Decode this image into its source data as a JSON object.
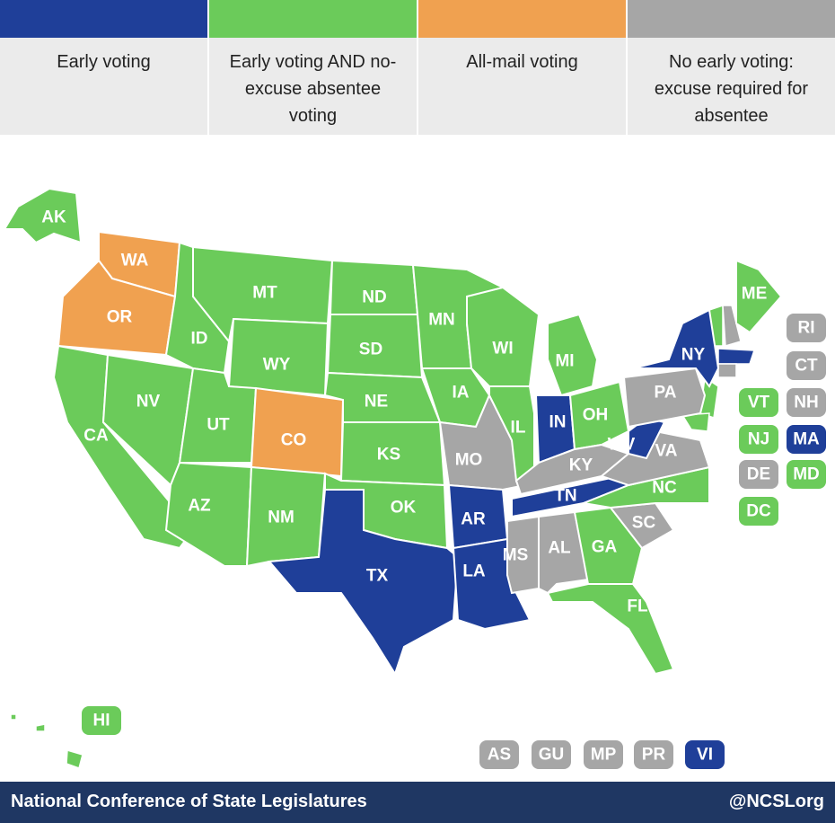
{
  "legend": [
    {
      "label": "Early voting",
      "color": "#1f3f99"
    },
    {
      "label": "Early voting AND no-excuse absentee voting",
      "color": "#6bcb5a"
    },
    {
      "label": "All-mail voting",
      "color": "#f0a150"
    },
    {
      "label": "No early voting: excuse required for absentee",
      "color": "#a6a6a6"
    }
  ],
  "states": [
    {
      "abbr": "AK",
      "category": 1
    },
    {
      "abbr": "WA",
      "category": 2
    },
    {
      "abbr": "OR",
      "category": 2
    },
    {
      "abbr": "CA",
      "category": 1
    },
    {
      "abbr": "NV",
      "category": 1
    },
    {
      "abbr": "ID",
      "category": 1
    },
    {
      "abbr": "MT",
      "category": 1
    },
    {
      "abbr": "WY",
      "category": 1
    },
    {
      "abbr": "UT",
      "category": 1
    },
    {
      "abbr": "CO",
      "category": 2
    },
    {
      "abbr": "AZ",
      "category": 1
    },
    {
      "abbr": "NM",
      "category": 1
    },
    {
      "abbr": "ND",
      "category": 1
    },
    {
      "abbr": "SD",
      "category": 1
    },
    {
      "abbr": "NE",
      "category": 1
    },
    {
      "abbr": "KS",
      "category": 1
    },
    {
      "abbr": "OK",
      "category": 1
    },
    {
      "abbr": "TX",
      "category": 0
    },
    {
      "abbr": "MN",
      "category": 1
    },
    {
      "abbr": "IA",
      "category": 1
    },
    {
      "abbr": "MO",
      "category": 3
    },
    {
      "abbr": "AR",
      "category": 0
    },
    {
      "abbr": "LA",
      "category": 0
    },
    {
      "abbr": "WI",
      "category": 1
    },
    {
      "abbr": "IL",
      "category": 1
    },
    {
      "abbr": "MI",
      "category": 1
    },
    {
      "abbr": "IN",
      "category": 0
    },
    {
      "abbr": "OH",
      "category": 1
    },
    {
      "abbr": "KY",
      "category": 3
    },
    {
      "abbr": "TN",
      "category": 0
    },
    {
      "abbr": "MS",
      "category": 3
    },
    {
      "abbr": "AL",
      "category": 3
    },
    {
      "abbr": "GA",
      "category": 1
    },
    {
      "abbr": "FL",
      "category": 1
    },
    {
      "abbr": "SC",
      "category": 3
    },
    {
      "abbr": "NC",
      "category": 1
    },
    {
      "abbr": "VA",
      "category": 3
    },
    {
      "abbr": "WV",
      "category": 0
    },
    {
      "abbr": "PA",
      "category": 3
    },
    {
      "abbr": "NY",
      "category": 0
    },
    {
      "abbr": "ME",
      "category": 1
    },
    {
      "abbr": "HI",
      "category": 1
    },
    {
      "abbr": "RI",
      "category": 3
    },
    {
      "abbr": "CT",
      "category": 3
    },
    {
      "abbr": "VT",
      "category": 1
    },
    {
      "abbr": "NH",
      "category": 3
    },
    {
      "abbr": "NJ",
      "category": 1
    },
    {
      "abbr": "MA",
      "category": 0
    },
    {
      "abbr": "DE",
      "category": 3
    },
    {
      "abbr": "MD",
      "category": 1
    },
    {
      "abbr": "DC",
      "category": 1
    },
    {
      "abbr": "AS",
      "category": 3
    },
    {
      "abbr": "GU",
      "category": 3
    },
    {
      "abbr": "MP",
      "category": 3
    },
    {
      "abbr": "PR",
      "category": 3
    },
    {
      "abbr": "VI",
      "category": 0
    }
  ],
  "footer": {
    "left": "National Conference of State Legislatures",
    "right": "@NCSLorg"
  }
}
